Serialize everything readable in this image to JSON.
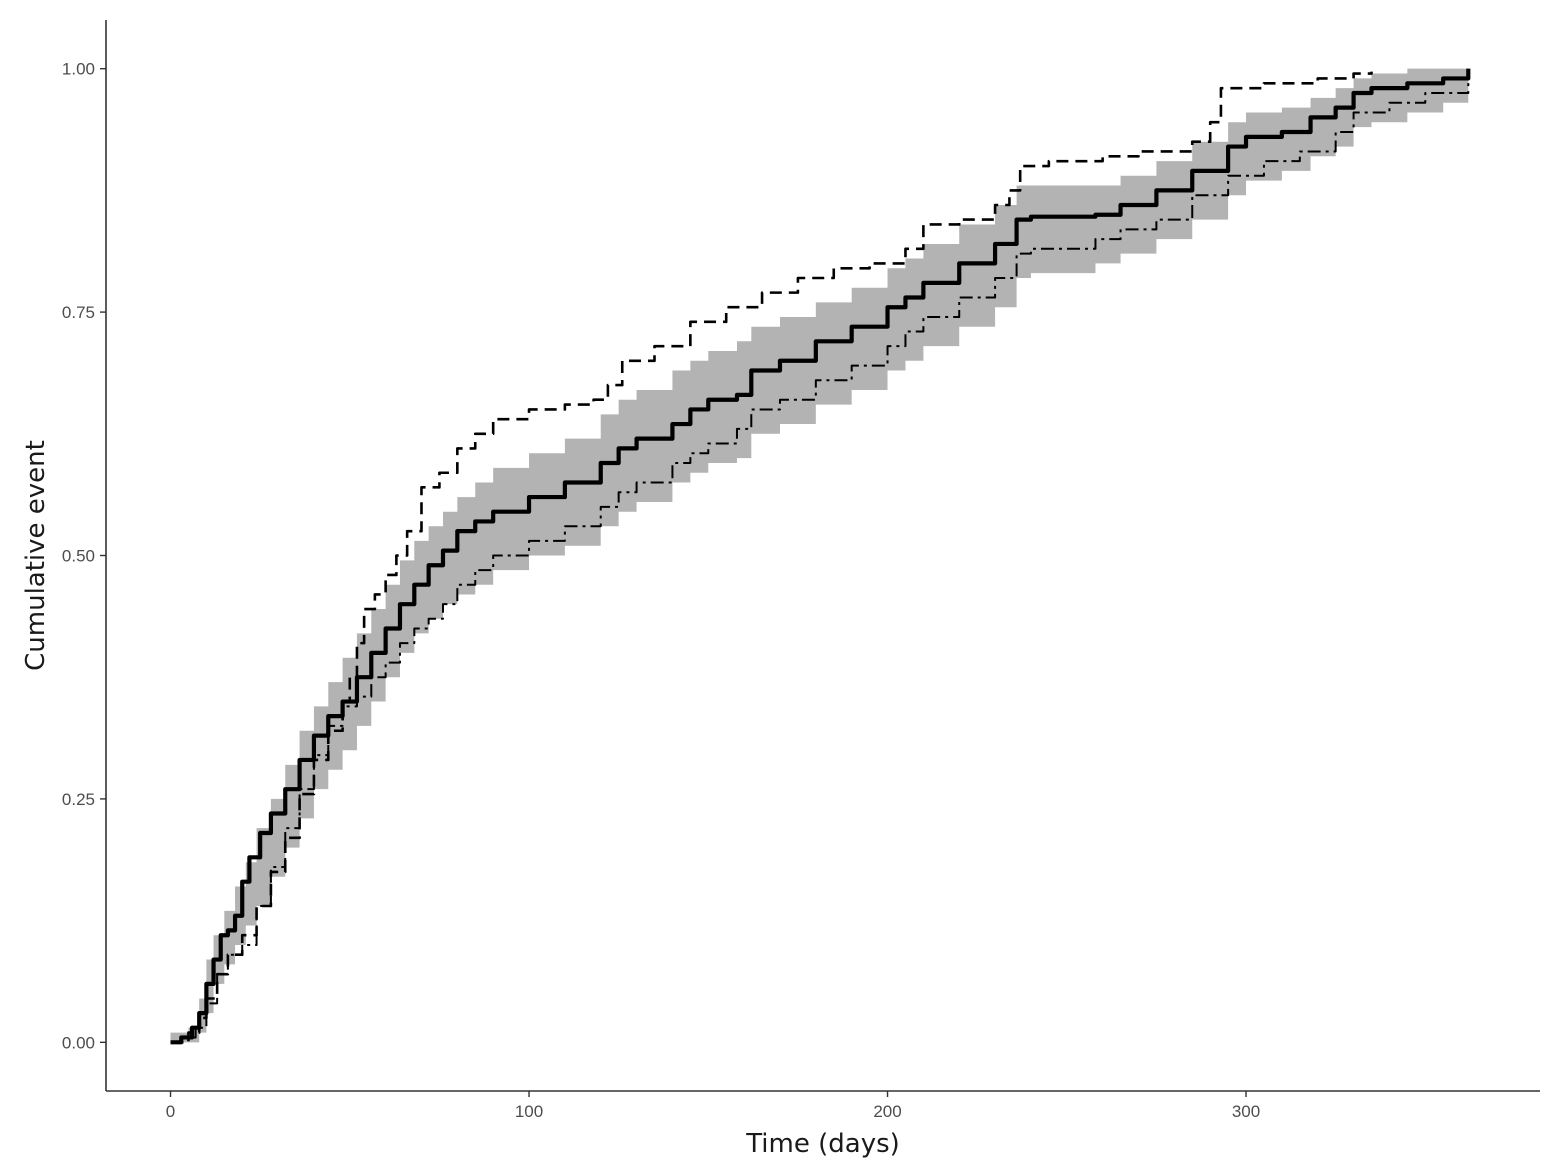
{
  "chart_data": {
    "type": "line",
    "title": "",
    "xlabel": "Time (days)",
    "ylabel": "Cumulative event",
    "xlim": [
      -18,
      382
    ],
    "ylim": [
      -0.05,
      1.05
    ],
    "x_ticks": [
      0,
      100,
      200,
      300
    ],
    "x_tick_labels": [
      "0",
      "100",
      "200",
      "300"
    ],
    "y_ticks": [
      0,
      0.25,
      0.5,
      0.75,
      1.0
    ],
    "y_tick_labels": [
      "0.00",
      "0.25",
      "0.50",
      "0.75",
      "1.00"
    ],
    "grid": false,
    "legend": "none",
    "colors": {
      "main": "#000000",
      "band": "#b3b3b3",
      "axis": "#333333"
    },
    "series": [
      {
        "style": "solid",
        "points": [
          [
            0,
            0
          ],
          [
            3,
            0.005
          ],
          [
            6,
            0.015
          ],
          [
            8,
            0.03
          ],
          [
            10,
            0.06
          ],
          [
            12,
            0.085
          ],
          [
            14,
            0.11
          ],
          [
            16,
            0.115
          ],
          [
            18,
            0.13
          ],
          [
            20,
            0.165
          ],
          [
            22,
            0.19
          ],
          [
            25,
            0.215
          ],
          [
            28,
            0.235
          ],
          [
            32,
            0.26
          ],
          [
            36,
            0.29
          ],
          [
            40,
            0.315
          ],
          [
            44,
            0.335
          ],
          [
            48,
            0.35
          ],
          [
            52,
            0.375
          ],
          [
            56,
            0.4
          ],
          [
            60,
            0.425
          ],
          [
            64,
            0.45
          ],
          [
            68,
            0.47
          ],
          [
            72,
            0.49
          ],
          [
            76,
            0.505
          ],
          [
            80,
            0.525
          ],
          [
            85,
            0.535
          ],
          [
            90,
            0.545
          ],
          [
            100,
            0.56
          ],
          [
            110,
            0.575
          ],
          [
            120,
            0.595
          ],
          [
            125,
            0.61
          ],
          [
            130,
            0.62
          ],
          [
            140,
            0.635
          ],
          [
            145,
            0.65
          ],
          [
            150,
            0.66
          ],
          [
            158,
            0.665
          ],
          [
            162,
            0.69
          ],
          [
            170,
            0.7
          ],
          [
            180,
            0.72
          ],
          [
            190,
            0.735
          ],
          [
            200,
            0.755
          ],
          [
            205,
            0.765
          ],
          [
            210,
            0.78
          ],
          [
            220,
            0.8
          ],
          [
            230,
            0.82
          ],
          [
            236,
            0.845
          ],
          [
            240,
            0.848
          ],
          [
            258,
            0.85
          ],
          [
            265,
            0.86
          ],
          [
            275,
            0.875
          ],
          [
            285,
            0.895
          ],
          [
            295,
            0.92
          ],
          [
            300,
            0.93
          ],
          [
            310,
            0.935
          ],
          [
            318,
            0.95
          ],
          [
            325,
            0.96
          ],
          [
            330,
            0.975
          ],
          [
            335,
            0.98
          ],
          [
            345,
            0.985
          ],
          [
            355,
            0.99
          ],
          [
            362,
            1.0
          ]
        ]
      },
      {
        "style": "dashed",
        "points": [
          [
            0,
            0
          ],
          [
            5,
            0.01
          ],
          [
            8,
            0.025
          ],
          [
            10,
            0.045
          ],
          [
            13,
            0.07
          ],
          [
            16,
            0.09
          ],
          [
            20,
            0.11
          ],
          [
            24,
            0.14
          ],
          [
            28,
            0.175
          ],
          [
            32,
            0.21
          ],
          [
            36,
            0.255
          ],
          [
            40,
            0.29
          ],
          [
            44,
            0.32
          ],
          [
            48,
            0.35
          ],
          [
            50,
            0.375
          ],
          [
            52,
            0.41
          ],
          [
            54,
            0.445
          ],
          [
            57,
            0.46
          ],
          [
            60,
            0.48
          ],
          [
            63,
            0.5
          ],
          [
            66,
            0.525
          ],
          [
            70,
            0.57
          ],
          [
            75,
            0.585
          ],
          [
            80,
            0.61
          ],
          [
            85,
            0.625
          ],
          [
            90,
            0.64
          ],
          [
            100,
            0.65
          ],
          [
            110,
            0.655
          ],
          [
            118,
            0.66
          ],
          [
            122,
            0.675
          ],
          [
            126,
            0.7
          ],
          [
            135,
            0.715
          ],
          [
            145,
            0.74
          ],
          [
            155,
            0.755
          ],
          [
            165,
            0.77
          ],
          [
            175,
            0.785
          ],
          [
            185,
            0.795
          ],
          [
            195,
            0.8
          ],
          [
            205,
            0.815
          ],
          [
            210,
            0.84
          ],
          [
            220,
            0.845
          ],
          [
            230,
            0.86
          ],
          [
            234,
            0.875
          ],
          [
            237,
            0.9
          ],
          [
            245,
            0.905
          ],
          [
            260,
            0.91
          ],
          [
            270,
            0.915
          ],
          [
            285,
            0.925
          ],
          [
            290,
            0.945
          ],
          [
            293,
            0.98
          ],
          [
            305,
            0.985
          ],
          [
            320,
            0.99
          ],
          [
            330,
            0.995
          ],
          [
            335,
            0.997
          ]
        ]
      },
      {
        "style": "dash-dot",
        "points": [
          [
            0,
            0
          ],
          [
            4,
            0.005
          ],
          [
            7,
            0.015
          ],
          [
            10,
            0.04
          ],
          [
            13,
            0.07
          ],
          [
            16,
            0.09
          ],
          [
            20,
            0.1
          ],
          [
            24,
            0.14
          ],
          [
            28,
            0.18
          ],
          [
            32,
            0.22
          ],
          [
            36,
            0.26
          ],
          [
            40,
            0.295
          ],
          [
            44,
            0.325
          ],
          [
            48,
            0.345
          ],
          [
            52,
            0.355
          ],
          [
            56,
            0.375
          ],
          [
            60,
            0.39
          ],
          [
            64,
            0.41
          ],
          [
            68,
            0.425
          ],
          [
            72,
            0.435
          ],
          [
            76,
            0.45
          ],
          [
            80,
            0.47
          ],
          [
            85,
            0.485
          ],
          [
            90,
            0.5
          ],
          [
            100,
            0.515
          ],
          [
            110,
            0.53
          ],
          [
            120,
            0.55
          ],
          [
            125,
            0.565
          ],
          [
            130,
            0.575
          ],
          [
            140,
            0.595
          ],
          [
            145,
            0.605
          ],
          [
            150,
            0.615
          ],
          [
            158,
            0.63
          ],
          [
            162,
            0.65
          ],
          [
            170,
            0.66
          ],
          [
            180,
            0.68
          ],
          [
            190,
            0.695
          ],
          [
            200,
            0.715
          ],
          [
            205,
            0.73
          ],
          [
            210,
            0.745
          ],
          [
            220,
            0.765
          ],
          [
            230,
            0.785
          ],
          [
            236,
            0.81
          ],
          [
            240,
            0.815
          ],
          [
            258,
            0.825
          ],
          [
            265,
            0.835
          ],
          [
            275,
            0.845
          ],
          [
            285,
            0.87
          ],
          [
            295,
            0.89
          ],
          [
            305,
            0.905
          ],
          [
            315,
            0.915
          ],
          [
            325,
            0.935
          ],
          [
            330,
            0.955
          ],
          [
            340,
            0.965
          ],
          [
            350,
            0.975
          ],
          [
            362,
            0.99
          ]
        ]
      }
    ],
    "band": {
      "lower": [
        [
          0,
          0
        ],
        [
          5,
          0
        ],
        [
          8,
          0.01
        ],
        [
          10,
          0.03
        ],
        [
          12,
          0.06
        ],
        [
          15,
          0.08
        ],
        [
          18,
          0.1
        ],
        [
          21,
          0.12
        ],
        [
          24,
          0.14
        ],
        [
          28,
          0.17
        ],
        [
          32,
          0.2
        ],
        [
          36,
          0.23
        ],
        [
          40,
          0.26
        ],
        [
          44,
          0.28
        ],
        [
          48,
          0.3
        ],
        [
          52,
          0.325
        ],
        [
          56,
          0.35
        ],
        [
          60,
          0.375
        ],
        [
          64,
          0.4
        ],
        [
          68,
          0.42
        ],
        [
          72,
          0.435
        ],
        [
          76,
          0.45
        ],
        [
          80,
          0.46
        ],
        [
          85,
          0.47
        ],
        [
          90,
          0.485
        ],
        [
          100,
          0.5
        ],
        [
          110,
          0.51
        ],
        [
          120,
          0.53
        ],
        [
          125,
          0.545
        ],
        [
          130,
          0.555
        ],
        [
          140,
          0.575
        ],
        [
          145,
          0.585
        ],
        [
          150,
          0.595
        ],
        [
          158,
          0.6
        ],
        [
          162,
          0.625
        ],
        [
          170,
          0.635
        ],
        [
          180,
          0.655
        ],
        [
          190,
          0.67
        ],
        [
          200,
          0.69
        ],
        [
          205,
          0.7
        ],
        [
          210,
          0.715
        ],
        [
          220,
          0.735
        ],
        [
          230,
          0.755
        ],
        [
          236,
          0.785
        ],
        [
          240,
          0.79
        ],
        [
          258,
          0.8
        ],
        [
          265,
          0.81
        ],
        [
          275,
          0.825
        ],
        [
          285,
          0.845
        ],
        [
          295,
          0.87
        ],
        [
          300,
          0.885
        ],
        [
          310,
          0.895
        ],
        [
          318,
          0.91
        ],
        [
          325,
          0.92
        ],
        [
          330,
          0.94
        ],
        [
          335,
          0.945
        ],
        [
          345,
          0.955
        ],
        [
          355,
          0.965
        ],
        [
          362,
          0.975
        ]
      ],
      "upper": [
        [
          0,
          0.01
        ],
        [
          5,
          0.015
        ],
        [
          8,
          0.045
        ],
        [
          10,
          0.085
        ],
        [
          12,
          0.11
        ],
        [
          15,
          0.135
        ],
        [
          18,
          0.16
        ],
        [
          21,
          0.185
        ],
        [
          24,
          0.22
        ],
        [
          28,
          0.25
        ],
        [
          32,
          0.285
        ],
        [
          36,
          0.32
        ],
        [
          40,
          0.345
        ],
        [
          44,
          0.37
        ],
        [
          48,
          0.395
        ],
        [
          52,
          0.42
        ],
        [
          56,
          0.445
        ],
        [
          60,
          0.47
        ],
        [
          64,
          0.495
        ],
        [
          68,
          0.515
        ],
        [
          72,
          0.53
        ],
        [
          76,
          0.545
        ],
        [
          80,
          0.56
        ],
        [
          85,
          0.575
        ],
        [
          90,
          0.59
        ],
        [
          100,
          0.605
        ],
        [
          110,
          0.62
        ],
        [
          120,
          0.645
        ],
        [
          125,
          0.66
        ],
        [
          130,
          0.67
        ],
        [
          140,
          0.69
        ],
        [
          145,
          0.7
        ],
        [
          150,
          0.71
        ],
        [
          158,
          0.72
        ],
        [
          162,
          0.735
        ],
        [
          170,
          0.745
        ],
        [
          180,
          0.76
        ],
        [
          190,
          0.775
        ],
        [
          200,
          0.795
        ],
        [
          205,
          0.805
        ],
        [
          210,
          0.82
        ],
        [
          220,
          0.84
        ],
        [
          230,
          0.86
        ],
        [
          236,
          0.88
        ],
        [
          240,
          0.88
        ],
        [
          258,
          0.88
        ],
        [
          265,
          0.89
        ],
        [
          275,
          0.905
        ],
        [
          285,
          0.925
        ],
        [
          295,
          0.945
        ],
        [
          300,
          0.955
        ],
        [
          310,
          0.96
        ],
        [
          318,
          0.97
        ],
        [
          325,
          0.98
        ],
        [
          330,
          0.99
        ],
        [
          335,
          0.995
        ],
        [
          345,
          1.0
        ],
        [
          362,
          1.0
        ]
      ]
    }
  }
}
